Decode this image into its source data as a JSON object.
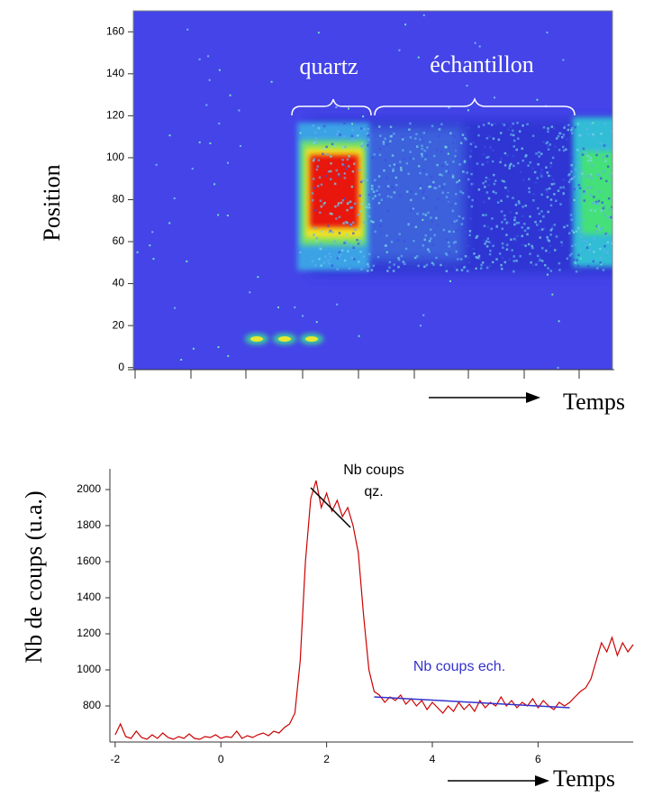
{
  "chart_data": [
    {
      "type": "heatmap",
      "ylabel": "Position",
      "xlabel": "Temps",
      "annotations": [
        "quartz",
        "échantillon"
      ],
      "ylim": [
        -1,
        170
      ],
      "yticks": [
        0,
        20,
        40,
        60,
        80,
        100,
        120,
        140,
        160
      ]
    },
    {
      "type": "line",
      "ylabel": "Nb de coups (u.a.)",
      "xlabel": "Temps",
      "xlim": [
        -2.1,
        7.8
      ],
      "ylim": [
        600,
        2100
      ],
      "xticks": [
        -2,
        0,
        2,
        4,
        6
      ],
      "yticks": [
        800,
        1000,
        1200,
        1400,
        1600,
        1800,
        2000
      ],
      "x": [
        -2.0,
        -1.9,
        -1.8,
        -1.7,
        -1.6,
        -1.5,
        -1.4,
        -1.3,
        -1.2,
        -1.1,
        -1.0,
        -0.9,
        -0.8,
        -0.7,
        -0.6,
        -0.5,
        -0.4,
        -0.3,
        -0.2,
        -0.1,
        0.0,
        0.1,
        0.2,
        0.3,
        0.4,
        0.5,
        0.6,
        0.7,
        0.8,
        0.9,
        1.0,
        1.1,
        1.2,
        1.3,
        1.4,
        1.5,
        1.6,
        1.7,
        1.8,
        1.9,
        2.0,
        2.1,
        2.2,
        2.3,
        2.4,
        2.5,
        2.6,
        2.7,
        2.8,
        2.9,
        3.0,
        3.1,
        3.2,
        3.3,
        3.4,
        3.5,
        3.6,
        3.7,
        3.8,
        3.9,
        4.0,
        4.1,
        4.2,
        4.3,
        4.4,
        4.5,
        4.6,
        4.7,
        4.8,
        4.9,
        5.0,
        5.1,
        5.2,
        5.3,
        5.4,
        5.5,
        5.6,
        5.7,
        5.8,
        5.9,
        6.0,
        6.1,
        6.2,
        6.3,
        6.4,
        6.5,
        6.6,
        6.7,
        6.8,
        6.9,
        7.0,
        7.1,
        7.2,
        7.3,
        7.4,
        7.5,
        7.6,
        7.7,
        7.8
      ],
      "series": [
        {
          "color": "#cc0000",
          "values": [
            640,
            700,
            630,
            620,
            660,
            625,
            615,
            640,
            620,
            650,
            625,
            615,
            630,
            620,
            645,
            620,
            615,
            630,
            625,
            640,
            620,
            630,
            625,
            660,
            620,
            635,
            625,
            640,
            650,
            635,
            660,
            650,
            680,
            700,
            760,
            1050,
            1600,
            1950,
            2050,
            1900,
            1980,
            1880,
            1940,
            1850,
            1900,
            1800,
            1650,
            1300,
            1000,
            880,
            860,
            820,
            850,
            830,
            860,
            810,
            840,
            800,
            830,
            780,
            820,
            790,
            760,
            800,
            770,
            820,
            780,
            810,
            770,
            830,
            790,
            820,
            800,
            850,
            800,
            830,
            790,
            820,
            800,
            840,
            790,
            830,
            800,
            780,
            820,
            800,
            820,
            850,
            880,
            900,
            950,
            1050,
            1150,
            1100,
            1180,
            1080,
            1150,
            1100,
            1140
          ]
        }
      ],
      "trend_lines": [
        {
          "color": "#000000",
          "x": [
            1.7,
            2.45
          ],
          "y": [
            2010,
            1790
          ]
        },
        {
          "color": "#3333cc",
          "x": [
            2.9,
            6.6
          ],
          "y": [
            850,
            790
          ]
        }
      ],
      "annotations": [
        {
          "text": [
            "Nb coups",
            "qz."
          ],
          "color": "#000000"
        },
        {
          "text": "Nb coups ech.",
          "color": "#3333cc"
        }
      ]
    }
  ]
}
